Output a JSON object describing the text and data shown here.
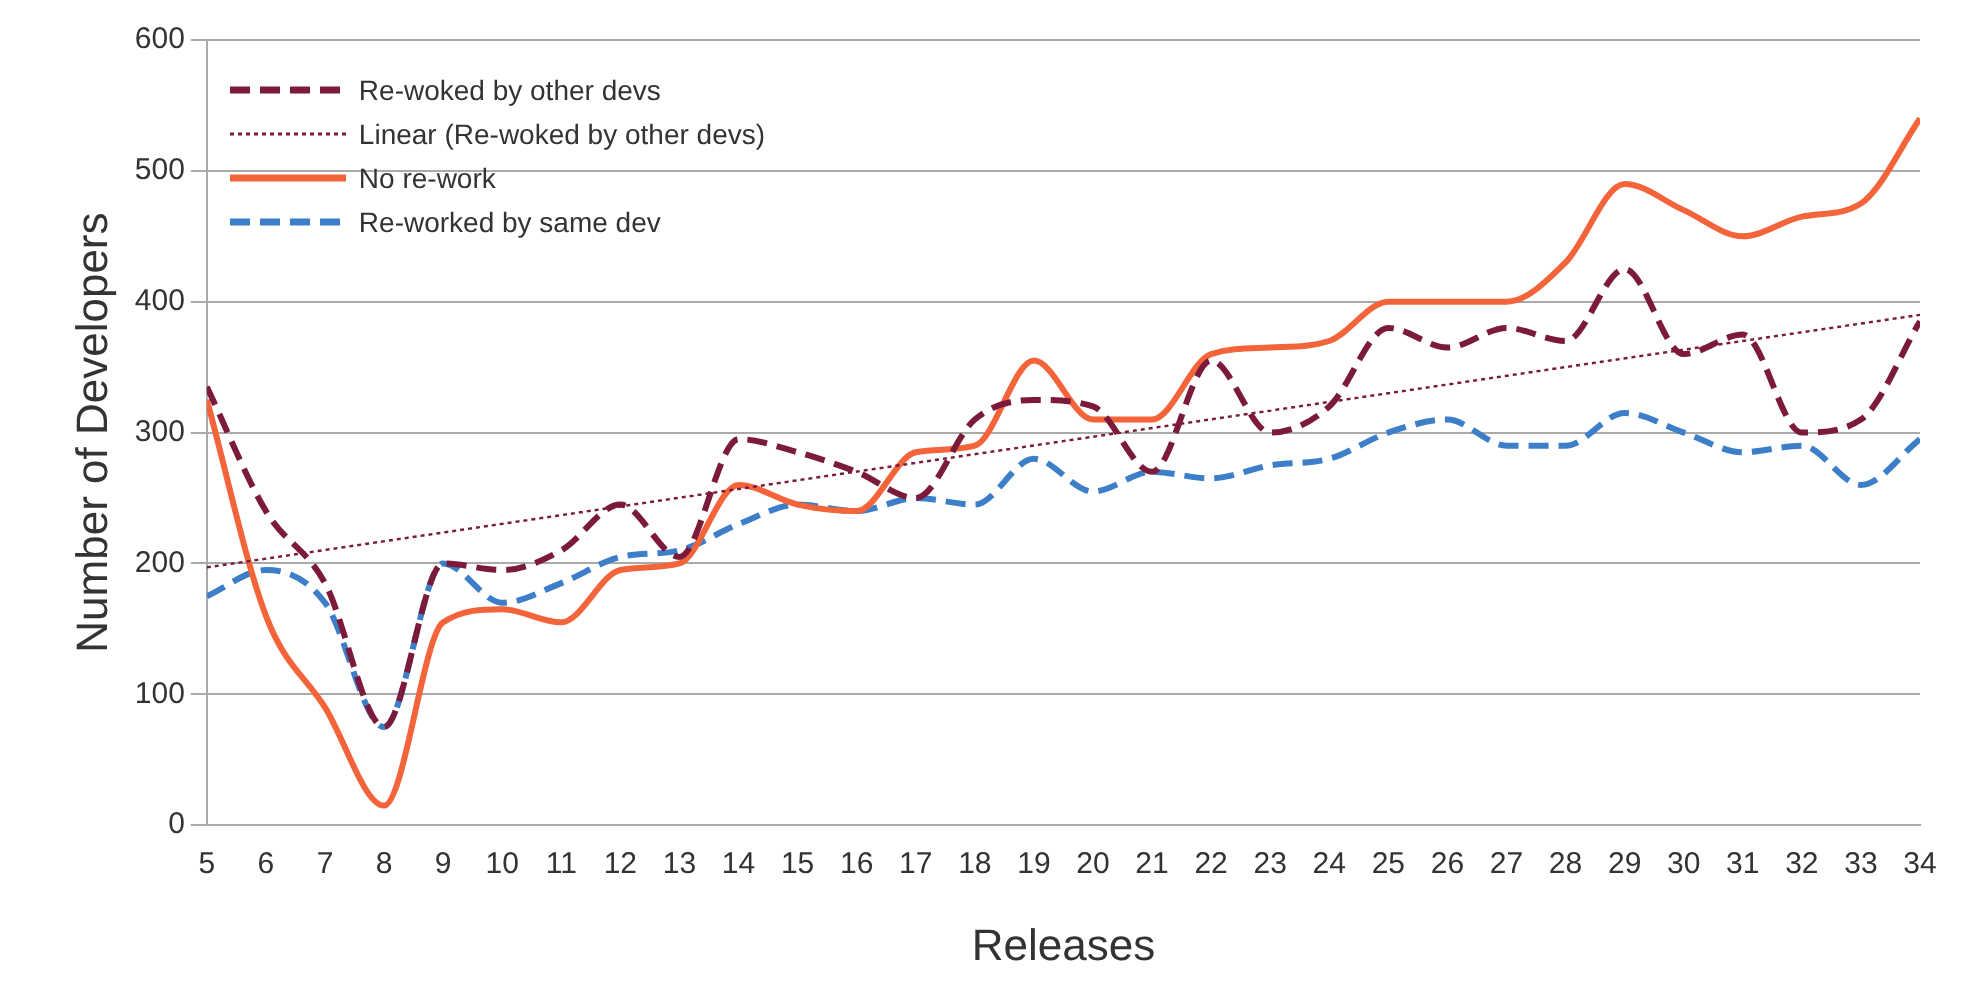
{
  "chart_data": {
    "type": "line",
    "xlabel": "Releases",
    "ylabel": "Number of Developers",
    "x": [
      5,
      6,
      7,
      8,
      9,
      10,
      11,
      12,
      13,
      14,
      15,
      16,
      17,
      18,
      19,
      20,
      21,
      22,
      23,
      24,
      25,
      26,
      27,
      28,
      29,
      30,
      31,
      32,
      33,
      34
    ],
    "xlim": [
      5,
      34
    ],
    "xticks": [
      5,
      6,
      7,
      8,
      9,
      10,
      11,
      12,
      13,
      14,
      15,
      16,
      17,
      18,
      19,
      20,
      21,
      22,
      23,
      24,
      25,
      26,
      27,
      28,
      29,
      30,
      31,
      32,
      33,
      34
    ],
    "ylim": [
      0,
      600
    ],
    "yticks": [
      0,
      100,
      200,
      300,
      400,
      500,
      600
    ],
    "grid": "y",
    "legend": "top left",
    "marker": "none",
    "series": [
      {
        "name": "Re-woked by other devs",
        "color": "#7b1a3a",
        "line_style": "dashed",
        "values": [
          335,
          240,
          185,
          75,
          200,
          195,
          210,
          245,
          205,
          295,
          285,
          270,
          250,
          310,
          325,
          320,
          270,
          355,
          300,
          320,
          380,
          365,
          380,
          370,
          425,
          360,
          375,
          300,
          310,
          385
        ]
      },
      {
        "name": "Linear (Re-woked by other devs)",
        "color": "#7b1a3a",
        "line_style": "dotted",
        "x": [
          5,
          34
        ],
        "values": [
          197,
          390
        ]
      },
      {
        "name": "No re-work",
        "color": "#f4643a",
        "line_style": "solid",
        "values": [
          325,
          160,
          90,
          15,
          155,
          165,
          155,
          195,
          200,
          260,
          245,
          240,
          285,
          290,
          355,
          310,
          310,
          360,
          365,
          370,
          400,
          400,
          400,
          430,
          490,
          470,
          450,
          465,
          475,
          540
        ]
      },
      {
        "name": "Re-worked by same dev",
        "color": "#3d7ec9",
        "line_style": "dashed",
        "values": [
          175,
          195,
          170,
          75,
          200,
          170,
          185,
          205,
          210,
          230,
          245,
          240,
          250,
          245,
          280,
          255,
          270,
          265,
          275,
          280,
          300,
          310,
          290,
          290,
          315,
          300,
          285,
          290,
          260,
          295
        ]
      }
    ]
  }
}
